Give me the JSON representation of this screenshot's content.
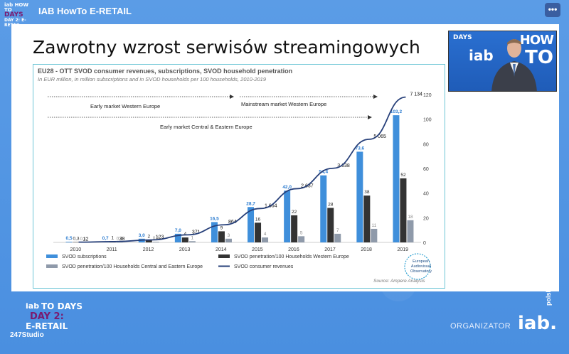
{
  "header": {
    "event_logo_top": "iab HOW TO",
    "event_logo_days": "DAYS",
    "event_logo_retail": "DAY 2: E-RETAIL",
    "title": "IAB HowTo E-RETAIL",
    "menu_icon": "more-horizontal-icon",
    "menu_label": "•••"
  },
  "slide": {
    "title": "Zawrotny wzrost serwisów streamingowych"
  },
  "webcam": {
    "brand": "DAYS",
    "how": "HOW",
    "iab": "iab",
    "to": "TO"
  },
  "footer": {
    "logo_line1": "iab",
    "logo_line1b": "TO DAYS",
    "logo_line2": "DAY 2:",
    "logo_line3": "E-RETAIL",
    "studio": "247Studio",
    "organizer": "ORGANIZATOR",
    "iab": "iab.",
    "polska": "polska"
  },
  "chart_data": {
    "type": "bar",
    "title": "EU28 - OTT SVOD consumer revenues, subscriptions, SVOD household penetration",
    "subtitle": "In EUR million, in million subscriptions and in SVOD households per 100 households, 2010-2019",
    "source": "Source: Ampere Analysis",
    "categories": [
      "2010",
      "2011",
      "2012",
      "2013",
      "2014",
      "2015",
      "2016",
      "2017",
      "2018",
      "2019"
    ],
    "ylim_right": [
      0,
      120
    ],
    "right_ticks": [
      "0",
      "20",
      "40",
      "60",
      "80",
      "100",
      "120"
    ],
    "annotations": [
      "Early market Western Europe",
      "Mainstream market Western Europe",
      "Early market Central & Eastern Europe"
    ],
    "series": [
      {
        "name": "SVOD subscriptions",
        "color": "#3f8fdb",
        "values": [
          0.5,
          0.7,
          3.0,
          7.0,
          16.5,
          28.7,
          42.0,
          54.4,
          73.6,
          103.2
        ],
        "labels": [
          "0,5",
          "0,7",
          "3,0",
          "7,0",
          "16,5",
          "28,7",
          "42,0",
          "54,4",
          "73,6",
          "103,2"
        ]
      },
      {
        "name": "SVOD penetration/100 Households Western Europe",
        "color": "#333333",
        "values": [
          0.3,
          1,
          2,
          4,
          9,
          16,
          22,
          28,
          38,
          52
        ],
        "labels": [
          "0,3",
          "1",
          "2",
          "4",
          "9",
          "16",
          "22",
          "28",
          "38",
          "52"
        ]
      },
      {
        "name": "SVOD penetration/100 Households Central and Eastern Europe",
        "color": "#8f9aaa",
        "values": [
          0.1,
          0.2,
          0.5,
          1,
          3,
          4,
          5,
          7,
          11,
          18
        ],
        "labels": [
          "0,1",
          "0,2",
          "0,5",
          "1",
          "3",
          "4",
          "5",
          "7",
          "11",
          "18"
        ]
      },
      {
        "name": "SVOD consumer revenues",
        "color": "#27407a",
        "type": "line",
        "values": [
          12,
          38,
          123,
          371,
          864,
          1664,
          2637,
          3638,
          5065,
          7134
        ],
        "labels": [
          "12",
          "38",
          "123",
          "371",
          "864",
          "1 664",
          "2 637",
          "3 638",
          "5 065",
          "7 134"
        ]
      }
    ],
    "badge": "European Audiovisual Observatory"
  }
}
